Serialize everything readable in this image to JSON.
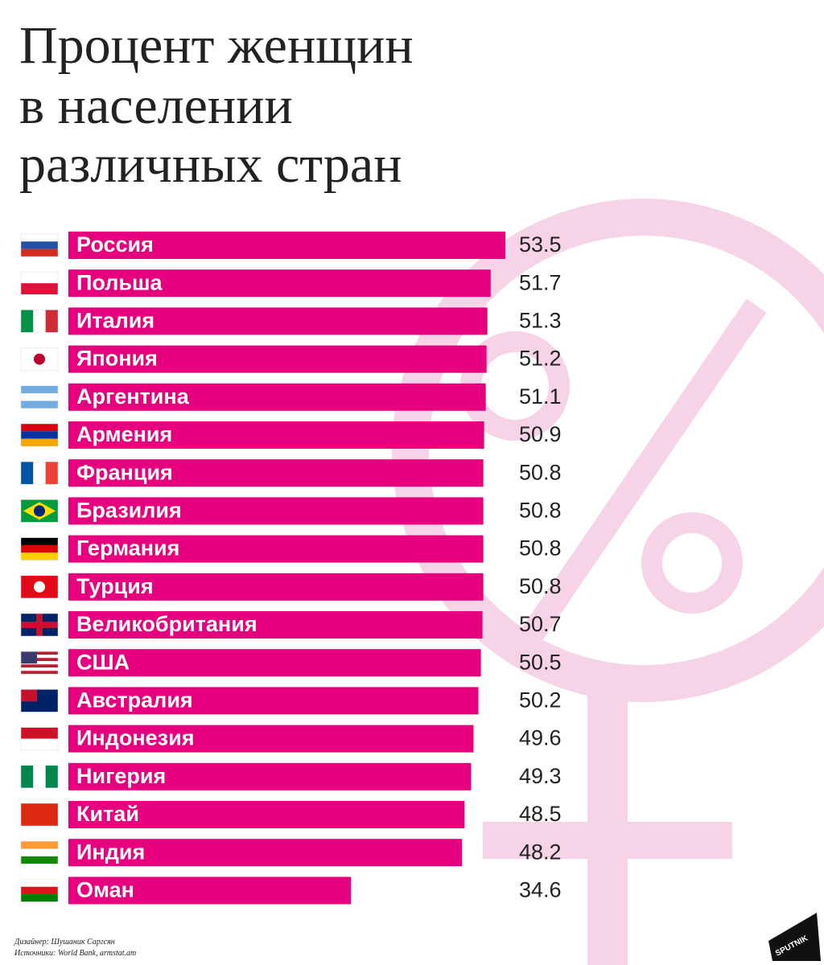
{
  "chart_data": {
    "type": "bar",
    "title_lines": [
      "Процент женщин",
      "в населении",
      "различных стран"
    ],
    "categories": [
      "Россия",
      "Польша",
      "Италия",
      "Япония",
      "Аргентина",
      "Армения",
      "Франция",
      "Бразилия",
      "Германия",
      "Турция",
      "Великобритания",
      "США",
      "Австралия",
      "Индонезия",
      "Нигерия",
      "Китай",
      "Индия",
      "Оман"
    ],
    "values": [
      53.5,
      51.7,
      51.3,
      51.2,
      51.1,
      50.9,
      50.8,
      50.8,
      50.8,
      50.8,
      50.7,
      50.5,
      50.2,
      49.6,
      49.3,
      48.5,
      48.2,
      34.6
    ],
    "color": "#e6007e",
    "credits": [
      "Дизайнер: Шушаник Саргсян",
      "Источники: World Bank, armstat.am"
    ],
    "logo": "SPUTNIK"
  }
}
